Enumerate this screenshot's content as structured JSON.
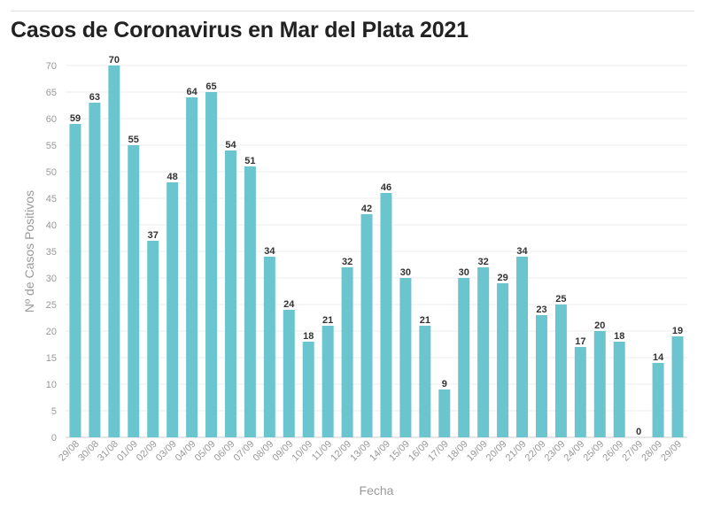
{
  "title": "Casos de Coronavirus en Mar del Plata 2021",
  "chart_data": {
    "type": "bar",
    "title": "Casos de Coronavirus en Mar del Plata 2021",
    "xlabel": "Fecha",
    "ylabel": "Nº de Casos Positivos",
    "ylim": [
      0,
      70
    ],
    "yticks": [
      0,
      5,
      10,
      15,
      20,
      25,
      30,
      35,
      40,
      45,
      50,
      55,
      60,
      65,
      70
    ],
    "grid": true,
    "bar_color": "#6ac5ce",
    "categories": [
      "29/08",
      "30/08",
      "31/08",
      "01/09",
      "02/09",
      "03/09",
      "04/09",
      "05/09",
      "06/09",
      "07/09",
      "08/09",
      "09/09",
      "10/09",
      "11/09",
      "12/09",
      "13/09",
      "14/09",
      "15/09",
      "16/09",
      "17/09",
      "18/09",
      "19/09",
      "20/09",
      "21/09",
      "22/09",
      "23/09",
      "24/09",
      "25/09",
      "26/09",
      "27/09",
      "28/09",
      "29/09"
    ],
    "values": [
      59,
      63,
      70,
      55,
      37,
      48,
      64,
      65,
      54,
      51,
      34,
      24,
      18,
      21,
      32,
      42,
      46,
      30,
      21,
      9,
      30,
      32,
      29,
      34,
      23,
      25,
      17,
      20,
      18,
      0,
      14,
      19
    ]
  }
}
